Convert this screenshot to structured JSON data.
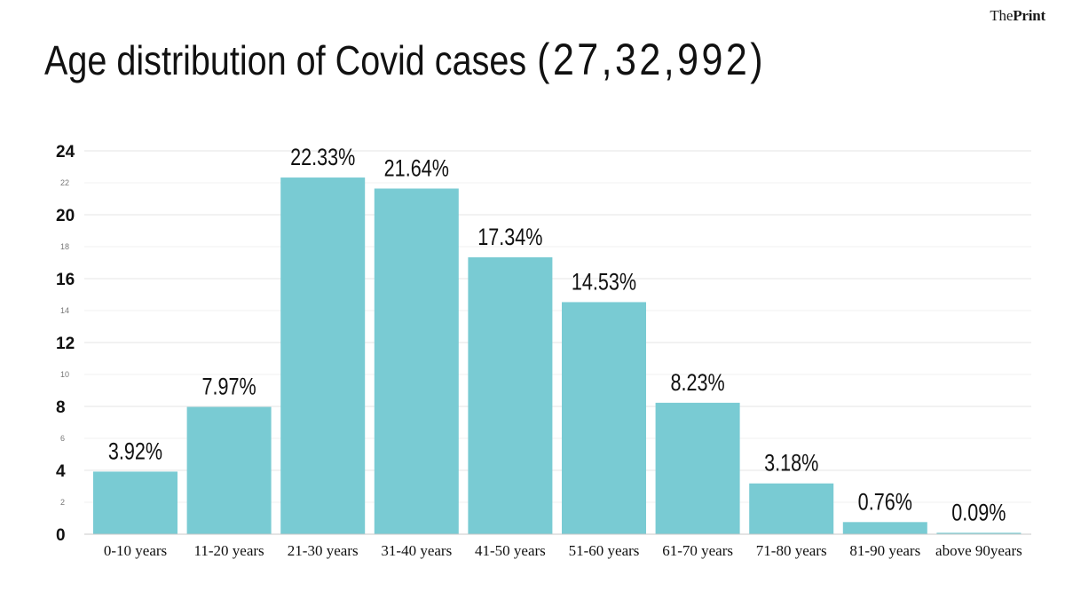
{
  "brand": {
    "part1": "The",
    "part2": "Print"
  },
  "title": {
    "text": "Age distribution of Covid cases",
    "total": "(27,32,992)"
  },
  "chart_data": {
    "type": "bar",
    "title": "Age distribution of Covid cases",
    "xlabel": "",
    "ylabel": "",
    "categories": [
      "0-10 years",
      "11-20 years",
      "21-30 years",
      "31-40 years",
      "41-50 years",
      "51-60 years",
      "61-70 years",
      "71-80 years",
      "81-90 years",
      "above 90years"
    ],
    "values": [
      3.92,
      7.97,
      22.33,
      21.64,
      17.34,
      14.53,
      8.23,
      3.18,
      0.76,
      0.09
    ],
    "data_labels": [
      "3.92%",
      "7.97%",
      "22.33%",
      "21.64%",
      "17.34%",
      "14.53%",
      "8.23%",
      "3.18%",
      "0.76%",
      "0.09%"
    ],
    "ylim": [
      0,
      24
    ],
    "yticks_major": [
      "0",
      "4",
      "8",
      "12",
      "16",
      "20",
      "24"
    ],
    "yticks_minor": [
      "2",
      "6",
      "10",
      "14",
      "18",
      "22"
    ],
    "grid": true,
    "bar_color": "#79cbd3"
  }
}
